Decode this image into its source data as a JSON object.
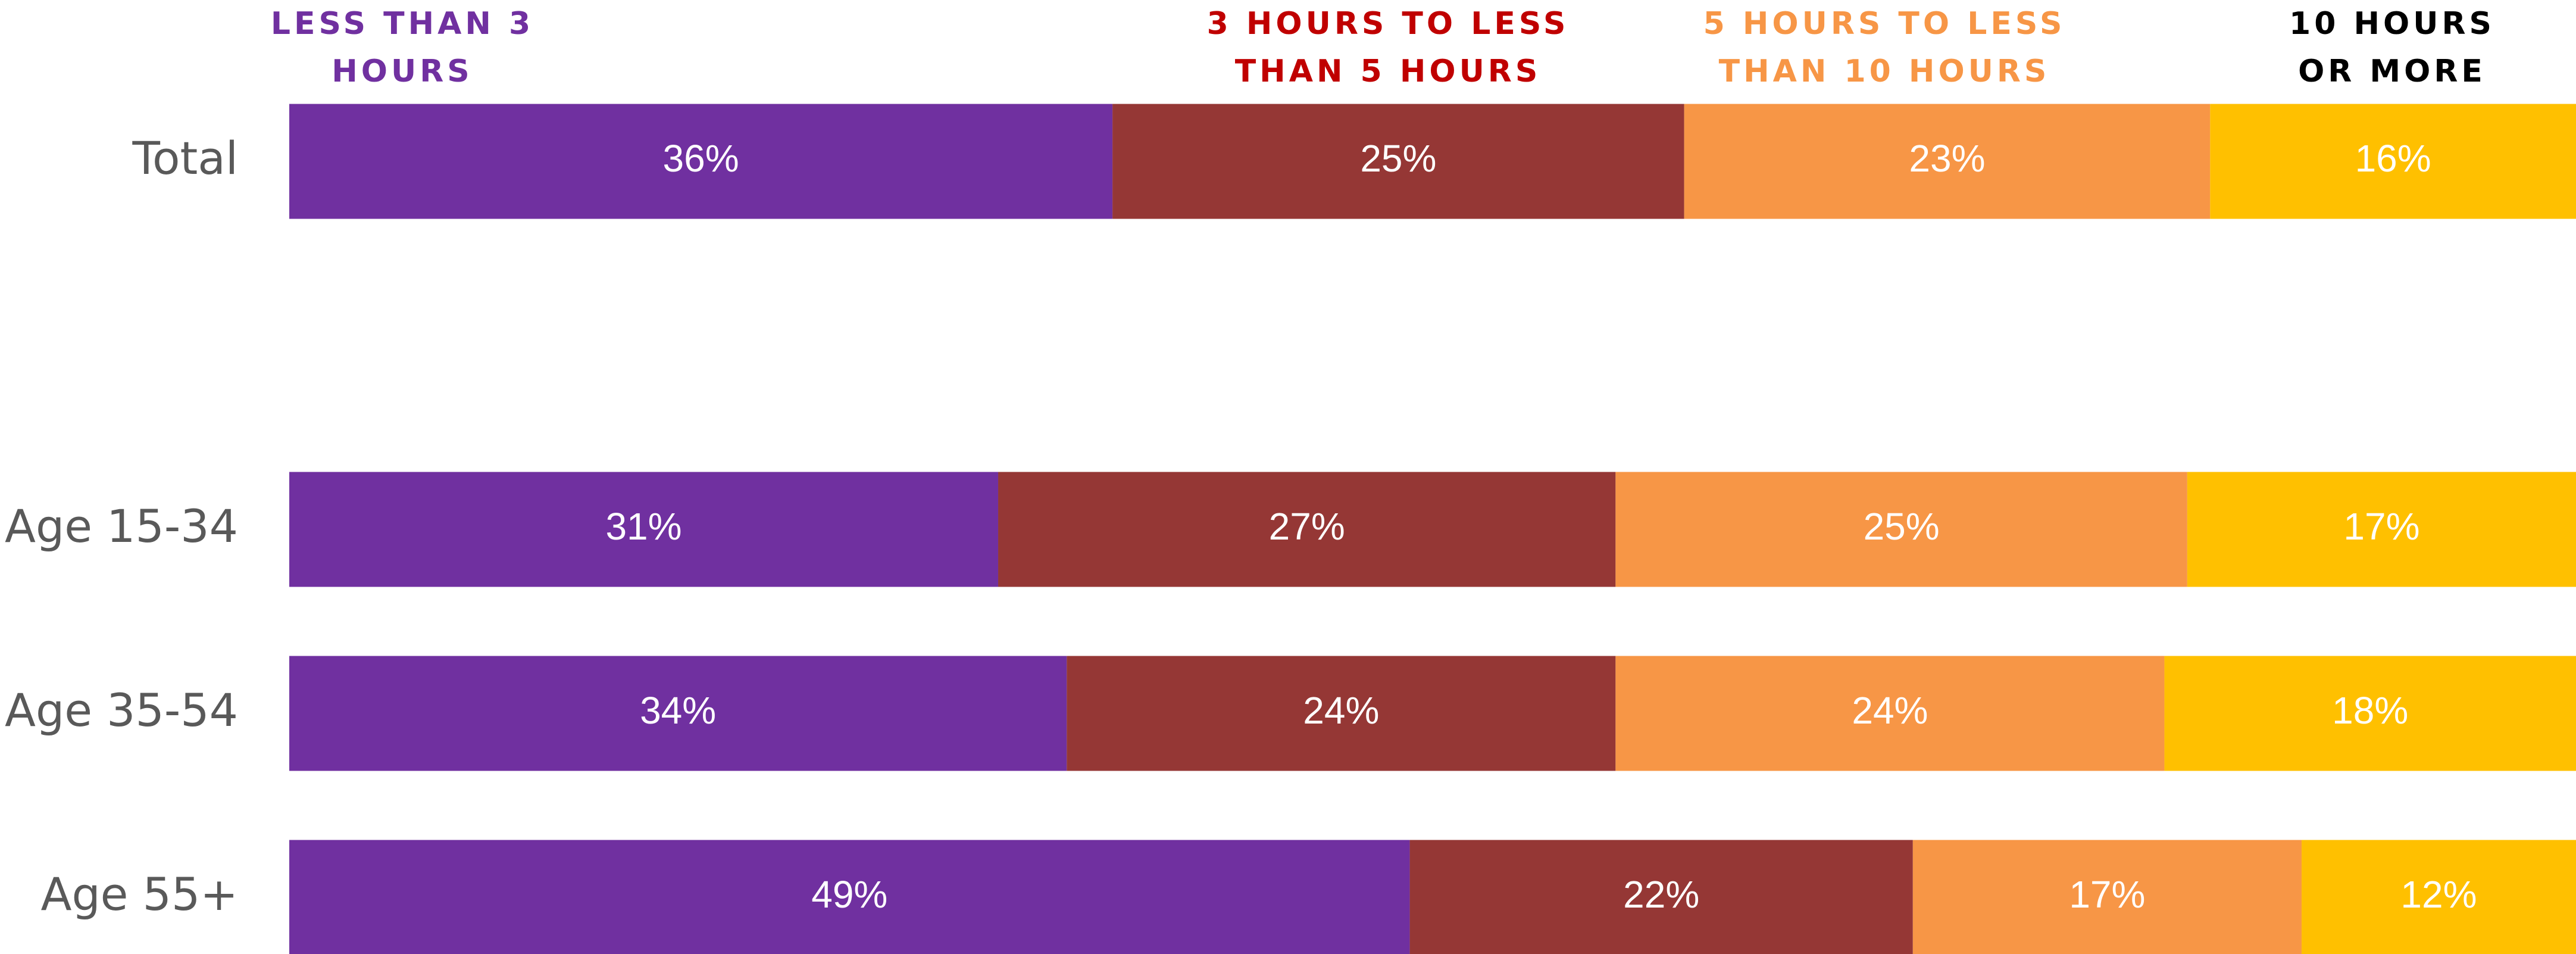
{
  "chart_data": {
    "type": "stacked-bar",
    "orientation": "horizontal",
    "categories": [
      "Total",
      null,
      "Age 15-34",
      "Age 35-54",
      "Age 55+"
    ],
    "xlim": [
      0,
      100
    ],
    "series": [
      {
        "name": "LESS THAN 3 HOURS",
        "color": "#7030a0",
        "legend_color": "#7030a0",
        "values": [
          36,
          null,
          31,
          34,
          49
        ],
        "value_labels": [
          "36%",
          null,
          "31%",
          "34%",
          "49%"
        ]
      },
      {
        "name": "3 HOURS TO LESS THAN 5 HOURS",
        "color": "#953735",
        "legend_color": "#c00000",
        "values": [
          25,
          null,
          27,
          24,
          22
        ],
        "value_labels": [
          "25%",
          null,
          "27%",
          "24%",
          "22%"
        ]
      },
      {
        "name": "5 HOURS TO LESS THAN 10 HOURS",
        "color": "#f79646",
        "legend_color": "#f79646",
        "values": [
          23,
          null,
          25,
          24,
          17
        ],
        "value_labels": [
          "23%",
          null,
          "25%",
          "24%",
          "17%"
        ]
      },
      {
        "name": "10 HOURS OR MORE",
        "color": "#ffc000",
        "legend_color": "#000000",
        "values": [
          16,
          null,
          17,
          18,
          12
        ],
        "value_labels": [
          "16%",
          null,
          "17%",
          "18%",
          "12%"
        ]
      }
    ]
  }
}
